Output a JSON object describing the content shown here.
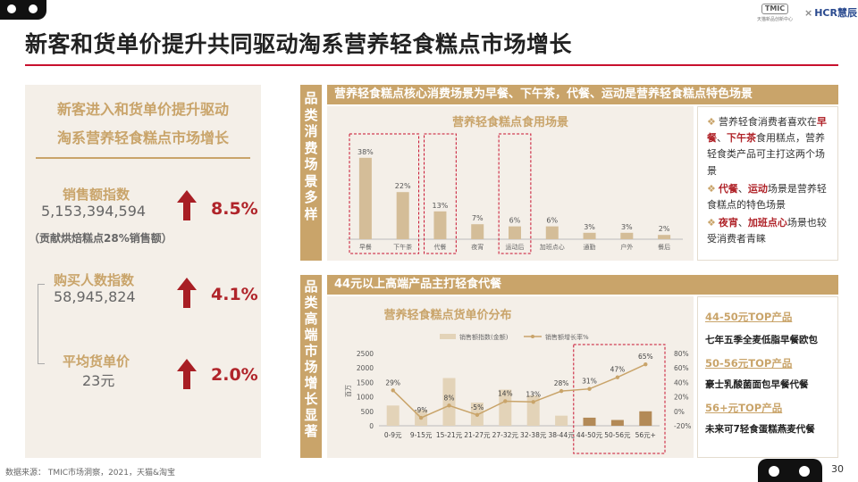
{
  "header": {
    "title": "新客和货单价提升共同驱动淘系营养轻食糕点市场增长",
    "tmic_logo": "TMIC",
    "tmic_sub": "天猫新品创新中心",
    "cross": "×",
    "hcr_logo": "HCR慧辰",
    "accent_color": "#c8102e",
    "gold_color": "#c9a46a"
  },
  "left_panel": {
    "heading_line1": "新客进入和货单价提升驱动",
    "heading_line2": "淘系营养轻食糕点市场增长",
    "metrics": [
      {
        "label": "销售额指数",
        "value": "5,153,394,594",
        "pct": "8.5%",
        "trend": "up-arrow-icon"
      },
      {
        "label": "购买人数指数",
        "value": "58,945,824",
        "pct": "4.1%",
        "trend": "up-arrow-icon"
      },
      {
        "label": "平均货单价",
        "value": "23元",
        "pct": "2.0%",
        "trend": "up-arrow-icon"
      }
    ],
    "note": "（贡献烘焙糕点28%销售额）"
  },
  "section1": {
    "side_label": "品类消费场景多样",
    "header": "营养轻食糕点核心消费场景为早餐、下午茶，代餐、运动是营养轻食糕点特色场景",
    "bullets": [
      [
        {
          "t": "营养轻食消费者喜欢在",
          "hl": false
        },
        {
          "t": "早餐",
          "hl": true
        },
        {
          "t": "、",
          "hl": false
        },
        {
          "t": "下午茶",
          "hl": true
        },
        {
          "t": "食用糕点，营养轻食类产品可主打这两个场景",
          "hl": false
        }
      ],
      [
        {
          "t": "代餐",
          "hl": true
        },
        {
          "t": "、",
          "hl": false
        },
        {
          "t": "运动",
          "hl": true
        },
        {
          "t": "场景是营养轻食糕点的特色场景",
          "hl": false
        }
      ],
      [
        {
          "t": "夜宵",
          "hl": true
        },
        {
          "t": "、",
          "hl": false
        },
        {
          "t": "加班点心",
          "hl": true
        },
        {
          "t": "场景也较受消费者青睐",
          "hl": false
        }
      ]
    ]
  },
  "section2": {
    "side_label": "品类高端市场增长显著",
    "header": "44元以上高端产品主打轻食代餐",
    "products": [
      {
        "range": "44-50元TOP产品",
        "item": "七年五季全麦低脂早餐欧包"
      },
      {
        "range": "50-56元TOP产品",
        "item": "豪士乳酸菌面包早餐代餐"
      },
      {
        "range": "56+元TOP产品",
        "item": "未来可7轻食蛋糕燕麦代餐"
      }
    ]
  },
  "chart_data": [
    {
      "type": "bar",
      "title": "营养轻食糕点食用场景",
      "categories": [
        "早餐",
        "下午茶",
        "代餐",
        "夜宵",
        "运动后",
        "加班点心",
        "通勤",
        "户外",
        "餐后"
      ],
      "values": [
        38,
        22,
        13,
        7,
        6,
        6,
        3,
        3,
        2
      ],
      "labels": [
        "38%",
        "22%",
        "13%",
        "7%",
        "6%",
        "6%",
        "3%",
        "3%",
        "2%"
      ],
      "ylim": [
        0,
        45
      ],
      "highlighted_groups": [
        [
          0,
          1
        ],
        [
          2
        ],
        [
          4
        ]
      ],
      "bar_color": "#d4bd98"
    },
    {
      "type": "bar+line",
      "title": "营养轻食糕点货单价分布",
      "categories": [
        "0-9元",
        "9-15元",
        "15-21元",
        "21-27元",
        "27-32元",
        "32-38元",
        "38-44元",
        "44-50元",
        "50-56元",
        "56元+"
      ],
      "series": [
        {
          "name": "销售额指数(金额)",
          "type": "bar",
          "axis": "left",
          "values": [
            700,
            550,
            1650,
            800,
            1250,
            1050,
            350,
            280,
            200,
            500
          ]
        },
        {
          "name": "销售额增长率%",
          "type": "line",
          "axis": "right",
          "values": [
            29,
            -9,
            8,
            -5,
            14,
            13,
            28,
            31,
            47,
            65
          ],
          "labels": [
            "29%",
            "-9%",
            "8%",
            "-5%",
            "14%",
            "13%",
            "28%",
            "31%",
            "47%",
            "65%"
          ]
        }
      ],
      "ylabel_left": "百万",
      "yticks_left": [
        "0",
        "500",
        "1000",
        "1500",
        "2000",
        "2500"
      ],
      "ylim_left": [
        0,
        2500
      ],
      "yticks_right": [
        "-20%",
        "0%",
        "20%",
        "40%",
        "60%",
        "80%"
      ],
      "ylim_right": [
        -20,
        80
      ],
      "highlighted_range": [
        7,
        9
      ],
      "bar_color": "#e3d3b8",
      "bar_highlight_color": "#b38a57",
      "line_color": "#c9a46a",
      "legend_position": "top"
    }
  ],
  "footer": {
    "source": "数据来源：  TMIC市场洞察，2021，天猫&淘宝",
    "page": "30"
  }
}
